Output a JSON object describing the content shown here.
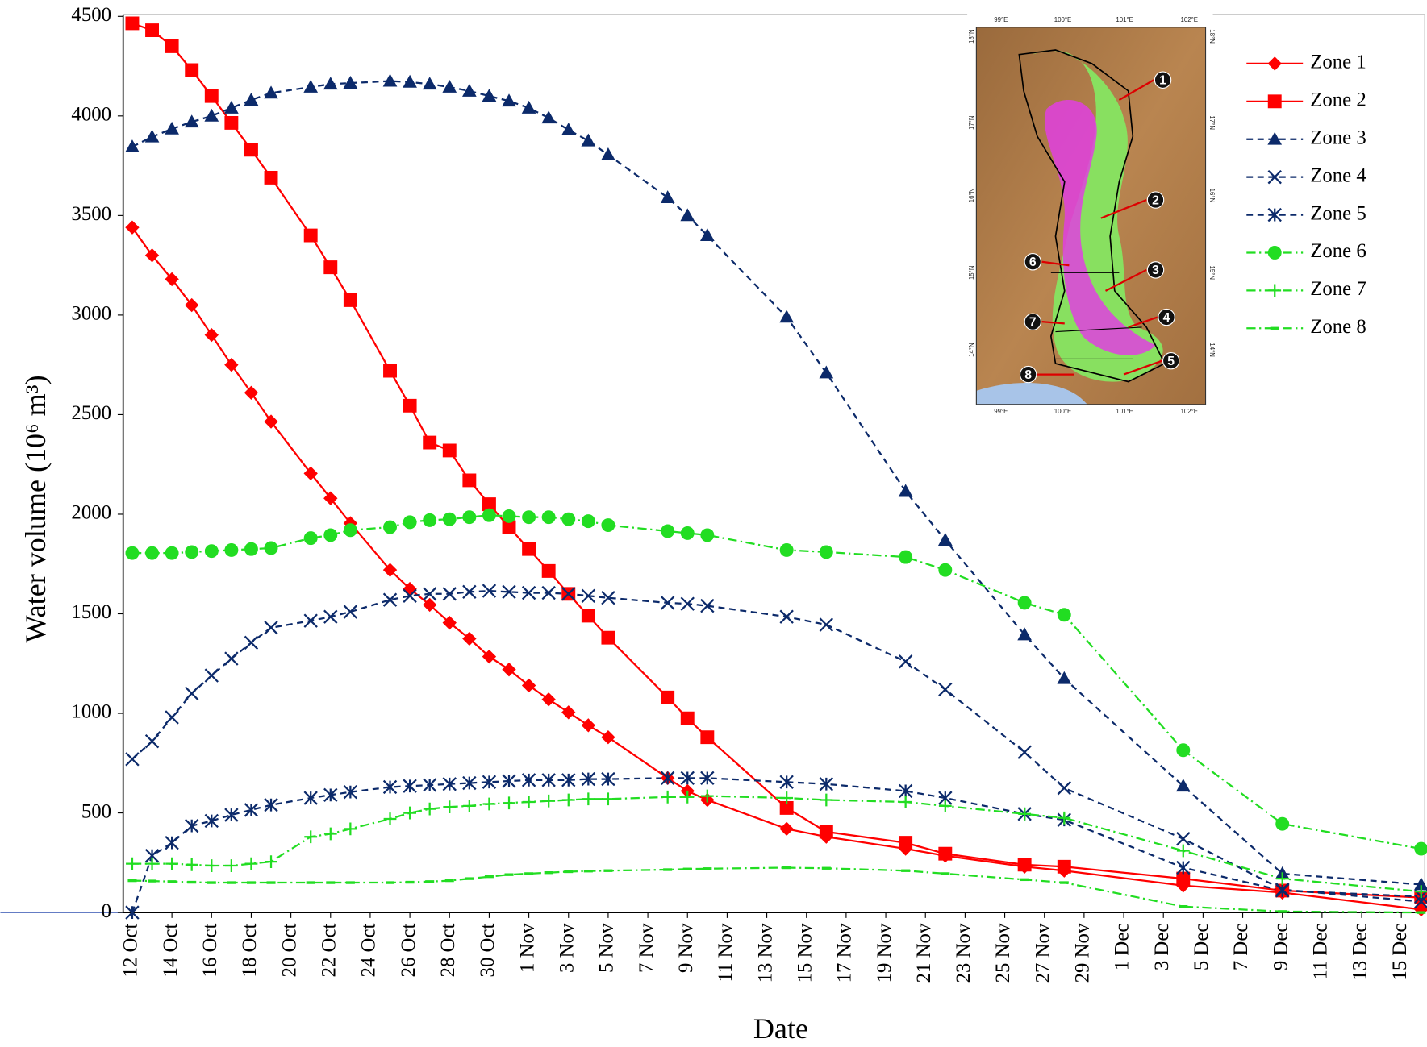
{
  "chart_data": {
    "type": "line",
    "x_label": "Date",
    "y_label": "Water volume (10⁶ m³)",
    "xlim": [
      "12 Oct",
      "16 Dec"
    ],
    "xticks": [
      "12 Oct",
      "14 Oct",
      "16 Oct",
      "18 Oct",
      "20 Oct",
      "22 Oct",
      "24 Oct",
      "26 Oct",
      "28 Oct",
      "30 Oct",
      "1 Nov",
      "3 Nov",
      "5 Nov",
      "7 Nov",
      "9 Nov",
      "11 Nov",
      "13 Nov",
      "15 Nov",
      "17 Nov",
      "19 Nov",
      "21 Nov",
      "23 Nov",
      "25 Nov",
      "27 Nov",
      "29 Nov",
      "1 Dec",
      "3 Dec",
      "5 Dec",
      "7 Dec",
      "9 Dec",
      "11 Dec",
      "13 Dec",
      "15 Dec"
    ],
    "ylim": [
      0,
      4500
    ],
    "yticks": [
      0,
      500,
      1000,
      1500,
      2000,
      2500,
      3000,
      3500,
      4000,
      4500
    ],
    "grid": false,
    "legend": "upper right",
    "x": [
      "12 Oct",
      "13 Oct",
      "14 Oct",
      "15 Oct",
      "16 Oct",
      "17 Oct",
      "18 Oct",
      "19 Oct",
      "21 Oct",
      "22 Oct",
      "23 Oct",
      "25 Oct",
      "26 Oct",
      "27 Oct",
      "28 Oct",
      "29 Oct",
      "30 Oct",
      "31 Oct",
      "1 Nov",
      "2 Nov",
      "3 Nov",
      "4 Nov",
      "5 Nov",
      "8 Nov",
      "9 Nov",
      "10 Nov",
      "14 Nov",
      "16 Nov",
      "20 Nov",
      "22 Nov",
      "26 Nov",
      "28 Nov",
      "4 Dec",
      "9 Dec",
      "16 Dec"
    ],
    "series": [
      {
        "name": "Zone 1",
        "color": "#ff0000",
        "line_style": "solid",
        "marker": "diamond",
        "values": [
          3440,
          3300,
          3180,
          3050,
          2900,
          2750,
          2610,
          2465,
          2205,
          2080,
          1955,
          1720,
          1625,
          1545,
          1455,
          1375,
          1285,
          1220,
          1140,
          1070,
          1005,
          940,
          880,
          675,
          610,
          565,
          420,
          380,
          320,
          285,
          230,
          210,
          135,
          100,
          15
        ]
      },
      {
        "name": "Zone 2",
        "color": "#ff0000",
        "line_style": "solid",
        "marker": "square",
        "values": [
          4465,
          4430,
          4350,
          4230,
          4100,
          3965,
          3830,
          3690,
          3400,
          3240,
          3075,
          2720,
          2545,
          2360,
          2320,
          2170,
          2050,
          1935,
          1825,
          1715,
          1600,
          1490,
          1380,
          1080,
          975,
          880,
          525,
          405,
          350,
          295,
          240,
          230,
          170,
          110,
          75
        ]
      },
      {
        "name": "Zone 3",
        "color": "#0c2a6a",
        "line_style": "dashed",
        "marker": "triangle",
        "values": [
          3845,
          3895,
          3935,
          3970,
          4000,
          4040,
          4080,
          4115,
          4145,
          4160,
          4165,
          4175,
          4170,
          4160,
          4145,
          4125,
          4100,
          4075,
          4040,
          3990,
          3930,
          3875,
          3805,
          3590,
          3500,
          3400,
          2990,
          2710,
          2115,
          1870,
          1395,
          1175,
          635,
          195,
          140
        ]
      },
      {
        "name": "Zone 4",
        "color": "#0c2a6a",
        "line_style": "dashed",
        "marker": "x",
        "values": [
          770,
          860,
          980,
          1100,
          1190,
          1275,
          1355,
          1430,
          1465,
          1485,
          1510,
          1570,
          1590,
          1600,
          1600,
          1610,
          1615,
          1610,
          1605,
          1605,
          1600,
          1590,
          1580,
          1555,
          1550,
          1540,
          1485,
          1445,
          1260,
          1120,
          805,
          625,
          370,
          115,
          55
        ]
      },
      {
        "name": "Zone 5",
        "color": "#0c2a6a",
        "line_style": "dashed",
        "marker": "asterisk",
        "values": [
          0,
          285,
          350,
          435,
          460,
          490,
          515,
          540,
          575,
          590,
          605,
          630,
          635,
          640,
          645,
          650,
          655,
          660,
          665,
          665,
          665,
          670,
          670,
          675,
          675,
          675,
          655,
          645,
          610,
          575,
          495,
          465,
          225,
          110,
          80
        ]
      },
      {
        "name": "Zone 6",
        "color": "#22dd22",
        "line_style": "dashdot",
        "marker": "circle",
        "values": [
          1805,
          1805,
          1805,
          1810,
          1815,
          1820,
          1825,
          1830,
          1880,
          1895,
          1920,
          1935,
          1960,
          1970,
          1975,
          1985,
          1995,
          1990,
          1985,
          1985,
          1975,
          1965,
          1945,
          1915,
          1905,
          1895,
          1820,
          1810,
          1785,
          1720,
          1555,
          1495,
          815,
          445,
          320
        ]
      },
      {
        "name": "Zone 7",
        "color": "#22dd22",
        "line_style": "dashdot",
        "marker": "plus",
        "values": [
          245,
          245,
          245,
          240,
          235,
          235,
          245,
          255,
          380,
          395,
          420,
          470,
          500,
          520,
          530,
          535,
          545,
          550,
          555,
          560,
          565,
          570,
          570,
          580,
          580,
          585,
          575,
          565,
          555,
          535,
          495,
          475,
          310,
          170,
          105
        ]
      },
      {
        "name": "Zone 8",
        "color": "#22dd22",
        "line_style": "dashdot",
        "marker": "dash",
        "values": [
          160,
          158,
          155,
          152,
          150,
          150,
          150,
          150,
          150,
          150,
          150,
          150,
          152,
          155,
          160,
          170,
          180,
          190,
          195,
          200,
          205,
          208,
          210,
          215,
          218,
          220,
          225,
          222,
          210,
          195,
          165,
          150,
          30,
          5,
          0
        ]
      }
    ],
    "inset": {
      "lon_labels": [
        "99°E",
        "100°E",
        "101°E",
        "102°E"
      ],
      "lat_labels": [
        "18°N",
        "17°N",
        "16°N",
        "15°N",
        "14°N"
      ],
      "zone_labels": [
        "1",
        "2",
        "3",
        "4",
        "5",
        "6",
        "7",
        "8"
      ]
    }
  }
}
